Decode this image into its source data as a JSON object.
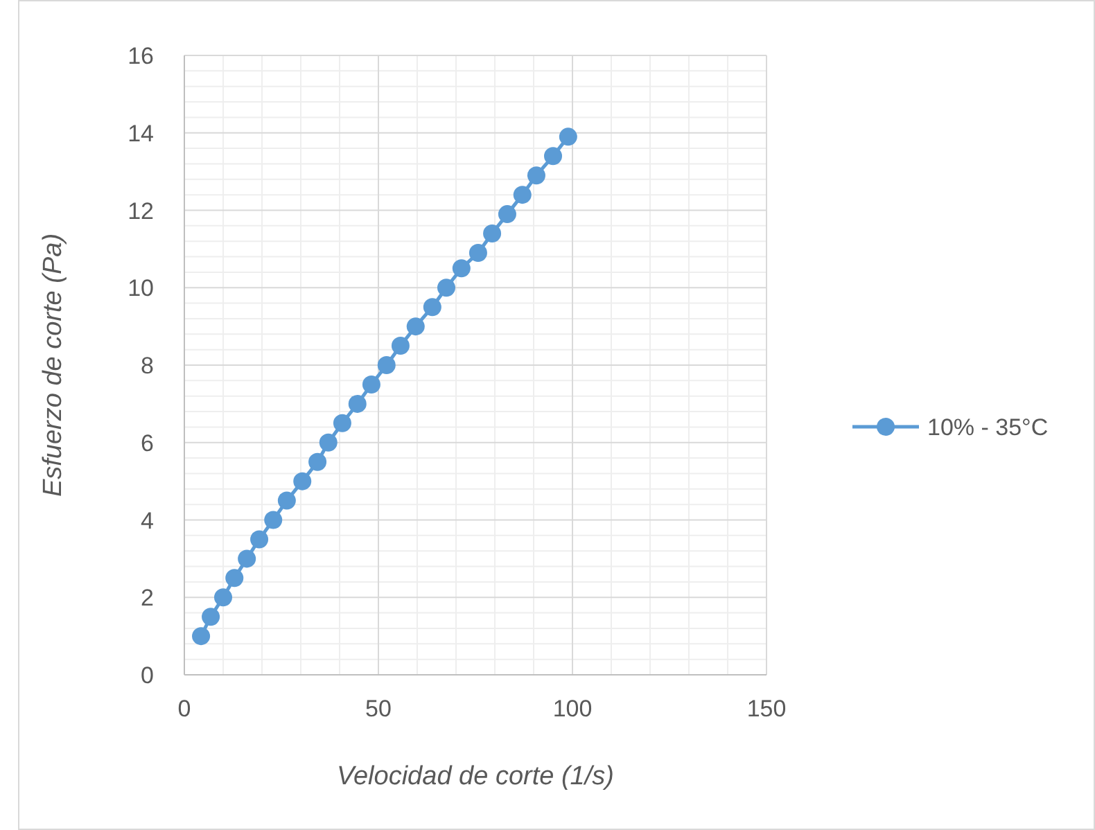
{
  "chart_data": {
    "type": "line",
    "xlabel": "Velocidad de corte (1/s)",
    "ylabel": "Esfuerzo de corte (Pa)",
    "xlim": [
      0,
      150
    ],
    "xticks": [
      0,
      50,
      100,
      150
    ],
    "ylim": [
      0,
      16
    ],
    "yticks": [
      0,
      2,
      4,
      6,
      8,
      10,
      12,
      14,
      16
    ],
    "grid": true,
    "legend": "right",
    "marker": "circle",
    "line_style": "solid",
    "series": [
      {
        "name": "10% - 35°C",
        "color": "#5b9bd5",
        "x": [
          4.3,
          6.8,
          10.0,
          12.9,
          16.1,
          19.3,
          22.9,
          26.4,
          30.4,
          34.3,
          37.1,
          40.7,
          44.6,
          48.2,
          52.1,
          55.7,
          59.6,
          63.9,
          67.5,
          71.4,
          75.7,
          79.3,
          83.2,
          87.1,
          90.7,
          95.0,
          98.9
        ],
        "values": [
          1.0,
          1.5,
          2.0,
          2.5,
          3.0,
          3.5,
          4.0,
          4.5,
          5.0,
          5.5,
          6.0,
          6.5,
          7.0,
          7.5,
          8.0,
          8.5,
          9.0,
          9.5,
          10.0,
          10.5,
          10.9,
          11.4,
          11.9,
          12.4,
          12.9,
          13.4,
          13.9
        ]
      }
    ]
  }
}
